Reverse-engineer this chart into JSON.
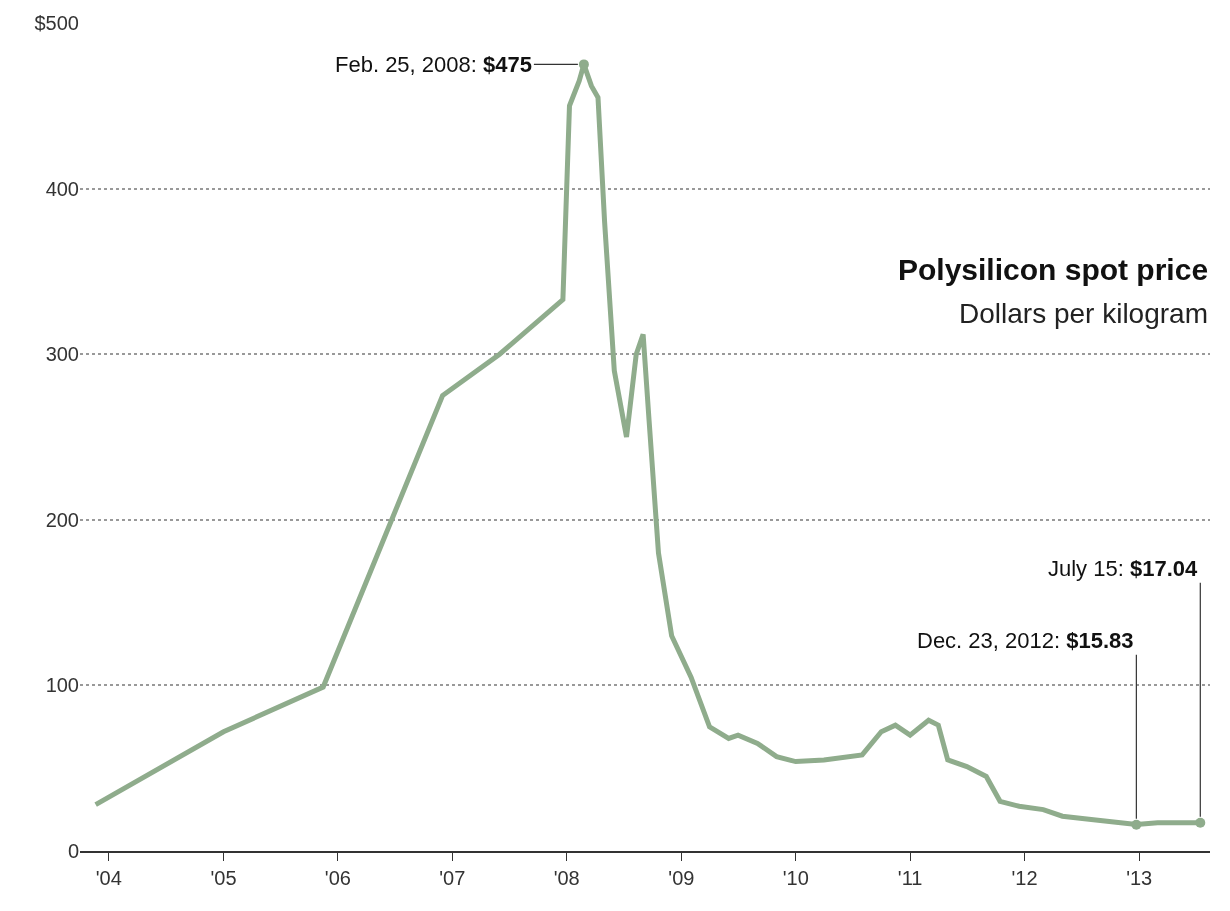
{
  "chart_data": {
    "type": "line",
    "title": "Polysilicon spot price",
    "subtitle": "Dollars per kilogram",
    "series": [
      {
        "color": "#8fac8c",
        "x": [
          "2003-11-20",
          "2005-01-01",
          "2005-11-15",
          "2006-12-01",
          "2007-06-01",
          "2007-12-20",
          "2008-01-10",
          "2008-02-10",
          "2008-02-25",
          "2008-03-20",
          "2008-04-10",
          "2008-05-01",
          "2008-06-01",
          "2008-07-10",
          "2008-08-10",
          "2008-09-01",
          "2008-09-20",
          "2008-10-20",
          "2008-12-01",
          "2009-02-01",
          "2009-04-01",
          "2009-06-01",
          "2009-07-01",
          "2009-09-01",
          "2009-11-01",
          "2010-01-01",
          "2010-04-01",
          "2010-08-01",
          "2010-10-01",
          "2010-11-15",
          "2011-01-01",
          "2011-03-01",
          "2011-04-01",
          "2011-05-01",
          "2011-07-01",
          "2011-09-01",
          "2011-10-15",
          "2011-12-15",
          "2012-03-01",
          "2012-05-01",
          "2012-08-01",
          "2012-12-23",
          "2013-03-01",
          "2013-07-15"
        ],
        "values": [
          28,
          72,
          99,
          275,
          300,
          333,
          450,
          465,
          475,
          462,
          455,
          380,
          290,
          250,
          300,
          312,
          260,
          180,
          130,
          105,
          75,
          68,
          70,
          65,
          57,
          54,
          55,
          58,
          72,
          76,
          70,
          79,
          76,
          55,
          51,
          45,
          30,
          27,
          25,
          21,
          19,
          16,
          17,
          17
        ]
      }
    ],
    "xlim": [
      "2003-10-01",
      "2013-08-15"
    ],
    "xticks": [
      {
        "value": "2004-01-01",
        "label": "'04"
      },
      {
        "value": "2005-01-01",
        "label": "'05"
      },
      {
        "value": "2006-01-01",
        "label": "'06"
      },
      {
        "value": "2007-01-01",
        "label": "'07"
      },
      {
        "value": "2008-01-01",
        "label": "'08"
      },
      {
        "value": "2009-01-01",
        "label": "'09"
      },
      {
        "value": "2010-01-01",
        "label": "'10"
      },
      {
        "value": "2011-01-01",
        "label": "'11"
      },
      {
        "value": "2012-01-01",
        "label": "'12"
      },
      {
        "value": "2013-01-01",
        "label": "'13"
      }
    ],
    "ylim": [
      0,
      500
    ],
    "yticks": [
      0,
      100,
      200,
      300,
      400,
      {
        "value": 500,
        "label": "$500"
      }
    ],
    "grid": "y",
    "marker": "none",
    "line_style": "solid",
    "annotations": [
      {
        "text": "Feb. 25, 2008: $475",
        "x": "2008-02-25",
        "y": 475
      },
      {
        "text": "Dec. 23, 2012: $15.83",
        "x": "2012-12-23",
        "y": 15.83
      },
      {
        "text": "July 15: $17.04",
        "x": "2013-07-15",
        "y": 17.04
      }
    ]
  }
}
